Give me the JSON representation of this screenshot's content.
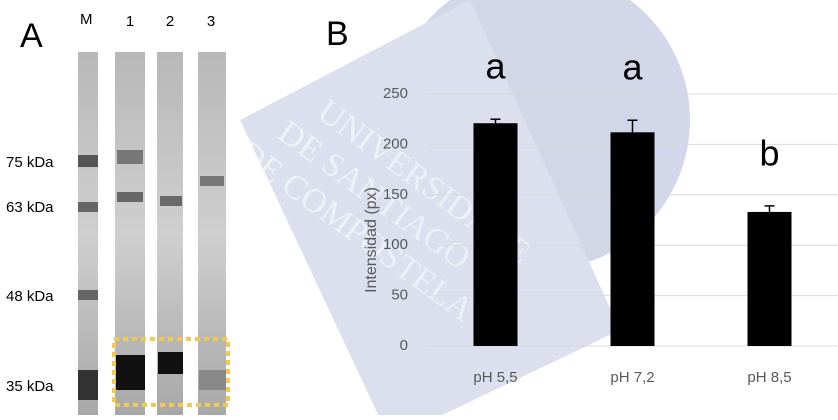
{
  "panel_a": {
    "label": "A",
    "lanes": [
      "M",
      "1",
      "2",
      "3"
    ],
    "markers": [
      "75 kDa",
      "63 kDa",
      "48 kDa",
      "35 kDa"
    ]
  },
  "watermark": [
    "UNIVERSIDADE",
    "DE SANTIAGO",
    "DE COMPOSTELA"
  ],
  "chart_data": {
    "type": "bar",
    "panel_label": "B",
    "y_label": "Intensidad (px)",
    "categories": [
      "pH 5,5",
      "pH 7,2",
      "pH 8,5"
    ],
    "values": [
      221,
      212,
      133
    ],
    "errors": [
      4,
      12,
      6
    ],
    "annotations": [
      "a",
      "a",
      "b"
    ],
    "color": "#000000",
    "ylim": [
      0,
      250
    ],
    "yticks": [
      0,
      50,
      100,
      150,
      200,
      250
    ],
    "grid": true
  }
}
